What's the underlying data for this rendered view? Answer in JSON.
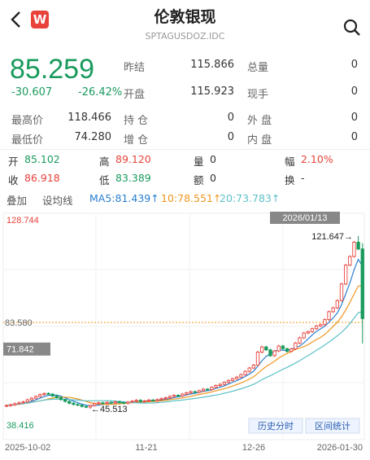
{
  "header": {
    "title": "伦敦银现",
    "subtitle": "SPTAGUSDOZ.IDC",
    "badge": "W"
  },
  "quote": {
    "price": "85.259",
    "change": "-30.607",
    "change_pct": "-26.42%",
    "fields": [
      {
        "label": "昨结",
        "value": "115.866"
      },
      {
        "label": "总量",
        "value": "0"
      },
      {
        "label": "开盘",
        "value": "115.923"
      },
      {
        "label": "现手",
        "value": "0"
      },
      {
        "label": "最高价",
        "value": "118.466"
      },
      {
        "label": "持 仓",
        "value": "0"
      },
      {
        "label": "外 盘",
        "value": "0"
      },
      {
        "label": "最低价",
        "value": "74.280"
      },
      {
        "label": "增 仓",
        "value": "0"
      },
      {
        "label": "内 盘",
        "value": "0"
      }
    ]
  },
  "cursor": {
    "fields": [
      {
        "label": "开",
        "value": "85.102"
      },
      {
        "label": "高",
        "value": "89.120"
      },
      {
        "label": "量",
        "value": "0"
      },
      {
        "label": "幅",
        "value": "2.10%"
      },
      {
        "label": "收",
        "value": "86.918"
      },
      {
        "label": "低",
        "value": "83.389"
      },
      {
        "label": "额",
        "value": "0"
      },
      {
        "label": "换",
        "value": "-"
      }
    ]
  },
  "toolbar": {
    "overlay": "叠加",
    "set_ma": "设均线",
    "ma5": "MA5:81.439↑",
    "ma10": "10:78.551↑",
    "ma20": "20:73.783↑"
  },
  "chart": {
    "type": "candlestick",
    "up_color": "#e8423a",
    "down_color": "#1a9b5e",
    "ma_colors": [
      "#2a7fd0",
      "#f0961e",
      "#5cc0c8"
    ],
    "ylim": [
      38.416,
      128.744
    ],
    "ylim_labels": [
      "38.416",
      "128.744"
    ],
    "ref_lines": [
      {
        "value": 83.58,
        "label": "83.580"
      },
      {
        "value": 71.842,
        "label": "71.842"
      }
    ],
    "date_tag": "2026/01/13",
    "high_note": {
      "value": 121.647,
      "label": "121.647→"
    },
    "low_note": {
      "value": 45.513,
      "label": "←45.513"
    },
    "buttons": [
      "历史分时",
      "区间统计"
    ],
    "x_labels": [
      "2025-10-02",
      "11-21",
      "12-26",
      "2026-01-30"
    ],
    "open": [
      46.8,
      47.0,
      47.3,
      47.8,
      48.2,
      48.6,
      49.5,
      50.2,
      51.0,
      51.8,
      52.3,
      52.0,
      51.2,
      50.5,
      49.6,
      48.8,
      48.0,
      47.5,
      47.2,
      46.6,
      46.3,
      47.0,
      47.8,
      48.2,
      47.9,
      48.4,
      48.1,
      48.6,
      48.3,
      48.0,
      48.5,
      48.9,
      49.3,
      48.8,
      49.0,
      49.4,
      49.1,
      49.6,
      50.0,
      50.4,
      51.0,
      51.5,
      51.2,
      52.0,
      52.6,
      53.1,
      52.8,
      53.5,
      54.2,
      54.0,
      55.0,
      55.8,
      56.3,
      57.2,
      58.0,
      58.8,
      59.5,
      60.6,
      62.0,
      63.5,
      64.8,
      70.5,
      72.8,
      71.5,
      68.9,
      71.0,
      73.2,
      72.0,
      70.8,
      71.9,
      74.5,
      76.8,
      78.9,
      79.5,
      80.8,
      82.0,
      82.6,
      84.8,
      88.3,
      90.0,
      93.2,
      100.5,
      108.8,
      112.6,
      118.9,
      115.923
    ],
    "high": [
      47.5,
      47.8,
      48.3,
      48.7,
      49.1,
      50.0,
      50.7,
      51.5,
      52.3,
      52.8,
      52.8,
      52.5,
      51.7,
      51.0,
      50.1,
      49.3,
      48.5,
      48.0,
      47.7,
      47.1,
      47.5,
      48.3,
      48.7,
      48.7,
      48.9,
      48.9,
      49.1,
      49.1,
      48.8,
      49.0,
      49.4,
      49.8,
      49.8,
      49.5,
      49.9,
      49.9,
      50.1,
      50.5,
      50.9,
      51.5,
      52.0,
      52.0,
      52.5,
      53.1,
      53.6,
      53.6,
      54.0,
      54.7,
      54.7,
      55.5,
      56.3,
      56.8,
      57.7,
      58.5,
      59.3,
      60.0,
      61.1,
      62.5,
      64.0,
      65.3,
      71.0,
      73.3,
      73.3,
      72.0,
      71.5,
      73.7,
      73.7,
      72.5,
      72.4,
      75.0,
      77.3,
      79.4,
      80.0,
      81.3,
      82.5,
      83.1,
      85.3,
      88.8,
      90.5,
      93.7,
      101.0,
      109.3,
      113.1,
      119.4,
      121.647,
      118.466
    ],
    "low": [
      46.3,
      46.5,
      46.8,
      47.3,
      47.7,
      48.1,
      49.0,
      49.7,
      50.5,
      51.3,
      51.5,
      50.7,
      50.0,
      49.1,
      48.3,
      47.5,
      47.0,
      46.7,
      46.1,
      45.8,
      45.513,
      46.5,
      47.3,
      47.4,
      47.4,
      47.6,
      47.6,
      47.8,
      47.5,
      47.5,
      48.0,
      48.4,
      48.3,
      48.3,
      48.5,
      48.6,
      48.6,
      49.1,
      49.5,
      49.9,
      50.5,
      50.7,
      50.7,
      51.5,
      52.1,
      52.3,
      52.3,
      53.0,
      53.5,
      53.5,
      54.5,
      55.3,
      55.8,
      56.7,
      57.5,
      58.3,
      59.0,
      60.1,
      61.5,
      63.0,
      64.3,
      70.0,
      71.0,
      68.4,
      68.4,
      70.5,
      71.5,
      70.3,
      70.3,
      71.4,
      74.0,
      76.3,
      78.4,
      79.0,
      80.3,
      81.5,
      82.1,
      84.3,
      87.8,
      89.5,
      92.7,
      100.0,
      108.3,
      112.1,
      115.366,
      74.28
    ],
    "close": [
      47.0,
      47.3,
      47.8,
      48.2,
      48.6,
      49.5,
      50.2,
      51.0,
      51.8,
      52.3,
      52.0,
      51.2,
      50.5,
      49.6,
      48.8,
      48.0,
      47.5,
      47.2,
      46.6,
      46.3,
      47.0,
      47.8,
      48.2,
      47.9,
      48.4,
      48.1,
      48.6,
      48.3,
      48.0,
      48.5,
      48.9,
      49.3,
      48.8,
      49.0,
      49.4,
      49.1,
      49.6,
      50.0,
      50.4,
      51.0,
      51.5,
      51.2,
      52.0,
      52.6,
      53.1,
      52.8,
      53.5,
      54.2,
      54.0,
      55.0,
      55.8,
      56.3,
      57.2,
      58.0,
      58.8,
      59.5,
      60.6,
      62.0,
      63.5,
      64.8,
      70.5,
      72.8,
      71.5,
      68.9,
      71.0,
      73.2,
      72.0,
      70.8,
      71.9,
      74.5,
      76.8,
      78.9,
      79.5,
      80.8,
      82.0,
      82.6,
      84.8,
      88.3,
      90.0,
      93.2,
      100.5,
      108.8,
      112.6,
      118.9,
      115.866,
      85.259
    ]
  }
}
